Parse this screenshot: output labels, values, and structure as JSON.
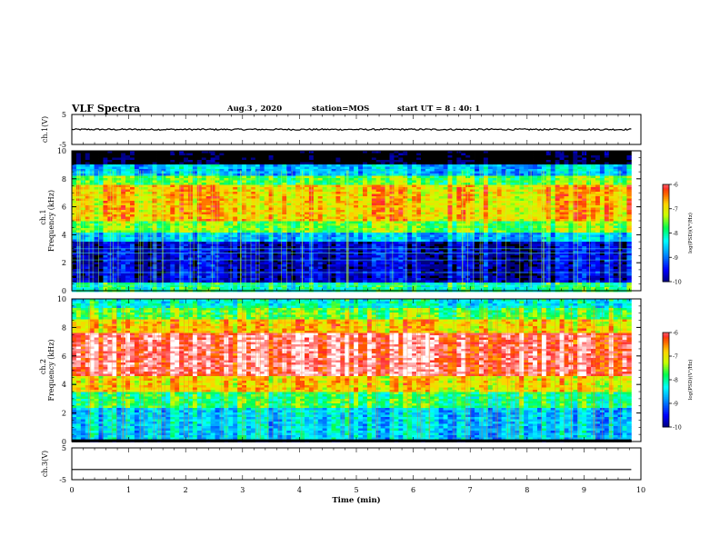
{
  "header": {
    "title": "VLF Spectra",
    "date": "Aug.3 , 2020",
    "station": "station=MOS",
    "start_time": "start UT = 8 : 40: 1"
  },
  "chart_data": [
    {
      "type": "line",
      "panel": "ch1-waveform",
      "title": "",
      "xlabel": "",
      "ylabel": "ch.1(V)",
      "ylim": [
        -5,
        5
      ],
      "y_ticks": [
        "5",
        "-5"
      ],
      "xlim": [
        0,
        10
      ],
      "series": [
        {
          "values": [
            0,
            0
          ]
        }
      ],
      "color": "#000000"
    },
    {
      "type": "heatmap",
      "panel": "ch1-spectrogram",
      "ylabel": "Frequency (kHz)",
      "channel_label": "ch.1",
      "ylim": [
        0,
        10
      ],
      "y_ticks": [
        "0",
        "2",
        "4",
        "6",
        "8",
        "10"
      ],
      "xlim": [
        0,
        10
      ],
      "data_end_x": 9.83,
      "bands": [
        {
          "y": [
            0,
            0.6
          ],
          "level": -8.0
        },
        {
          "y": [
            0.6,
            3.5
          ],
          "level": -9.7
        },
        {
          "y": [
            3.5,
            4.2
          ],
          "level": -8.6
        },
        {
          "y": [
            4.2,
            5.0
          ],
          "level": -7.5
        },
        {
          "y": [
            5.0,
            7.6
          ],
          "level": -6.8
        },
        {
          "y": [
            7.6,
            8.2
          ],
          "level": -7.6
        },
        {
          "y": [
            8.2,
            9.0
          ],
          "level": -8.6
        },
        {
          "y": [
            9.0,
            10
          ],
          "level": -10.5
        }
      ],
      "colorbar": {
        "label": "log(PSD)(V²/Hz)",
        "range": [
          -10,
          -6
        ],
        "ticks": [
          "-6",
          "-7",
          "-8",
          "-9",
          "-10"
        ]
      }
    },
    {
      "type": "heatmap",
      "panel": "ch2-spectrogram",
      "ylabel": "Frequency (kHz)",
      "channel_label": "ch.2",
      "ylim": [
        0,
        10
      ],
      "y_ticks": [
        "0",
        "2",
        "4",
        "6",
        "8",
        "10"
      ],
      "xlim": [
        0,
        10
      ],
      "data_end_x": 9.83,
      "bands": [
        {
          "y": [
            0,
            0.2
          ],
          "level": -10.5
        },
        {
          "y": [
            0.2,
            2.4
          ],
          "level": -8.5
        },
        {
          "y": [
            2.4,
            3.4
          ],
          "level": -7.8
        },
        {
          "y": [
            3.4,
            4.6
          ],
          "level": -6.9
        },
        {
          "y": [
            4.6,
            7.6
          ],
          "level": -5.9
        },
        {
          "y": [
            7.6,
            8.6
          ],
          "level": -6.8
        },
        {
          "y": [
            8.6,
            9.4
          ],
          "level": -7.6
        },
        {
          "y": [
            9.4,
            10
          ],
          "level": -8.2
        }
      ],
      "colorbar": {
        "label": "log(PSD)(V²/Hz)",
        "range": [
          -10,
          -6
        ],
        "ticks": [
          "-6",
          "-7",
          "-8",
          "-9",
          "-10"
        ]
      }
    },
    {
      "type": "line",
      "panel": "ch3-waveform",
      "ylabel": "ch.3(V)",
      "ylim": [
        -5,
        5
      ],
      "y_ticks": [
        "5",
        "-5"
      ],
      "xlim": [
        0,
        10
      ],
      "xlabel": "Time (min)",
      "x_ticks": [
        "0",
        "1",
        "2",
        "3",
        "4",
        "5",
        "6",
        "7",
        "8",
        "9",
        "10"
      ],
      "series": [
        {
          "values": [
            -1.8,
            -1.8
          ]
        }
      ],
      "color": "#000000"
    }
  ]
}
